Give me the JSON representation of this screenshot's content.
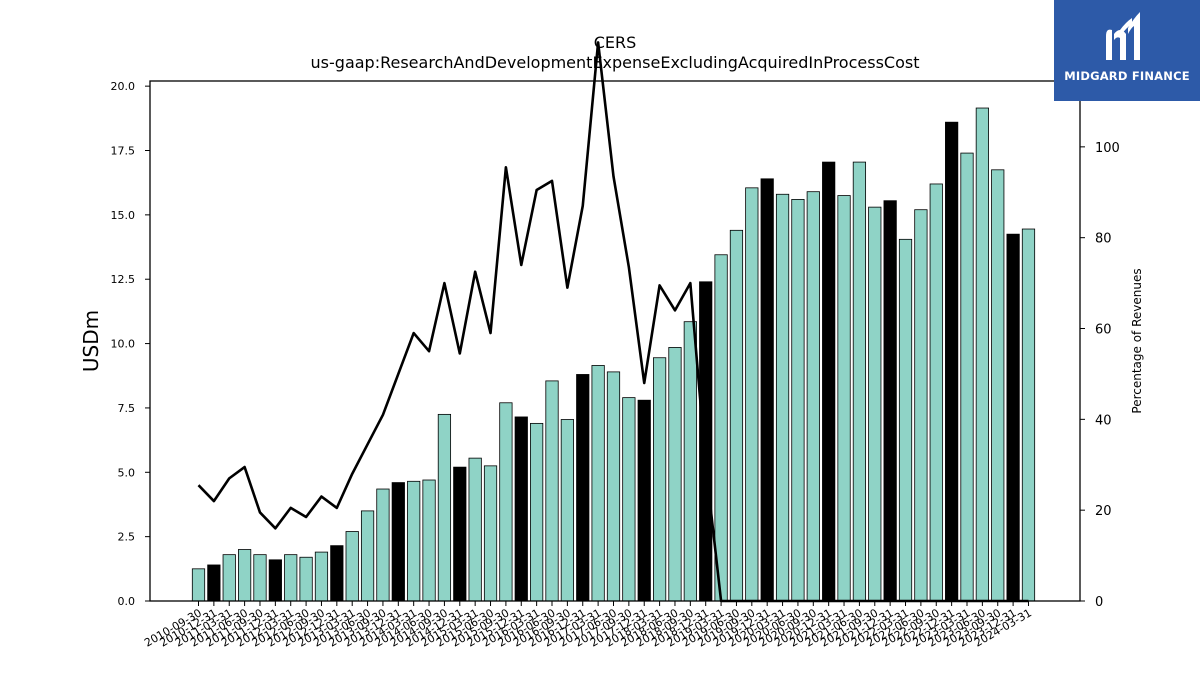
{
  "chart_data": {
    "type": "bar",
    "title": "CERS",
    "subtitle": "us-gaap:ResearchAndDevelopmentExpenseExcludingAcquiredInProcessCost",
    "ylabel": "USDm",
    "ylabel_right": "Percentage of Revenues",
    "ylim": [
      0,
      20.2
    ],
    "ylim_right": [
      0,
      114.5
    ],
    "yticks": [
      "0.0",
      "2.5",
      "5.0",
      "7.5",
      "10.0",
      "12.5",
      "15.0",
      "17.5",
      "20.0"
    ],
    "yticks_right": [
      "0",
      "20",
      "40",
      "60",
      "80",
      "100"
    ],
    "colors": {
      "bar": "#8fd3c6",
      "bar_highlight": "#000000",
      "line": "#000000"
    },
    "categories": [
      "2010-09-30",
      "2010-12-31",
      "2011-03-31",
      "2011-06-30",
      "2011-09-30",
      "2011-12-31",
      "2012-03-31",
      "2012-06-30",
      "2012-09-30",
      "2012-12-31",
      "2013-03-31",
      "2013-06-30",
      "2013-09-30",
      "2013-12-31",
      "2014-03-31",
      "2014-06-30",
      "2014-09-30",
      "2014-12-31",
      "2015-03-31",
      "2015-06-30",
      "2015-09-30",
      "2015-12-31",
      "2016-03-31",
      "2016-06-30",
      "2016-09-30",
      "2016-12-31",
      "2017-03-31",
      "2017-06-30",
      "2017-09-30",
      "2017-12-31",
      "2018-03-31",
      "2018-06-30",
      "2018-09-30",
      "2018-12-31",
      "2019-03-31",
      "2019-06-30",
      "2019-09-30",
      "2019-12-31",
      "2020-03-31",
      "2020-06-30",
      "2020-09-30",
      "2020-12-31",
      "2021-03-31",
      "2021-06-30",
      "2021-09-30",
      "2021-12-31",
      "2022-03-31",
      "2022-06-30",
      "2022-09-30",
      "2022-12-31",
      "2023-03-31",
      "2023-06-30",
      "2023-09-30",
      "2023-12-31",
      "2024-03-31"
    ],
    "series": [
      {
        "type": "bar",
        "values": [
          1.25,
          1.4,
          1.8,
          2.0,
          1.8,
          1.6,
          1.8,
          1.7,
          1.9,
          2.15,
          2.7,
          3.5,
          4.35,
          4.6,
          4.65,
          4.7,
          7.25,
          5.2,
          5.55,
          5.25,
          7.7,
          7.15,
          6.9,
          8.55,
          7.05,
          8.8,
          9.15,
          8.9,
          7.9,
          7.8,
          9.45,
          9.85,
          10.85,
          12.4,
          13.45,
          14.4,
          16.05,
          16.4,
          15.8,
          15.6,
          15.9,
          17.05,
          15.75,
          17.05,
          15.3,
          15.55,
          14.05,
          15.2,
          16.2,
          18.6,
          17.4,
          19.15,
          16.75,
          14.25,
          14.45
        ],
        "highlight": [
          false,
          true,
          false,
          false,
          false,
          true,
          false,
          false,
          false,
          true,
          false,
          false,
          false,
          true,
          false,
          false,
          false,
          true,
          false,
          false,
          false,
          true,
          false,
          false,
          false,
          true,
          false,
          false,
          false,
          true,
          false,
          false,
          false,
          true,
          false,
          false,
          false,
          true,
          false,
          false,
          false,
          true,
          false,
          false,
          false,
          true,
          false,
          false,
          false,
          true,
          false,
          false,
          false,
          true,
          false
        ]
      },
      {
        "type": "line",
        "axis": "right",
        "values": [
          25.5,
          22,
          27,
          29.5,
          19.5,
          16,
          20.5,
          18.5,
          23,
          20.5,
          28,
          34.5,
          41,
          50,
          59,
          55,
          70,
          54.5,
          72.5,
          59,
          95.5,
          74,
          90.5,
          92.5,
          69,
          87,
          123,
          93.5,
          73.5,
          48,
          69.5,
          64,
          70,
          30,
          0,
          0,
          0,
          0,
          0,
          0,
          0,
          0,
          0,
          0,
          0,
          0,
          0,
          0,
          0,
          0,
          0,
          0,
          0,
          0,
          0
        ]
      }
    ]
  },
  "logo": {
    "text": "MIDGARD FINANCE"
  }
}
